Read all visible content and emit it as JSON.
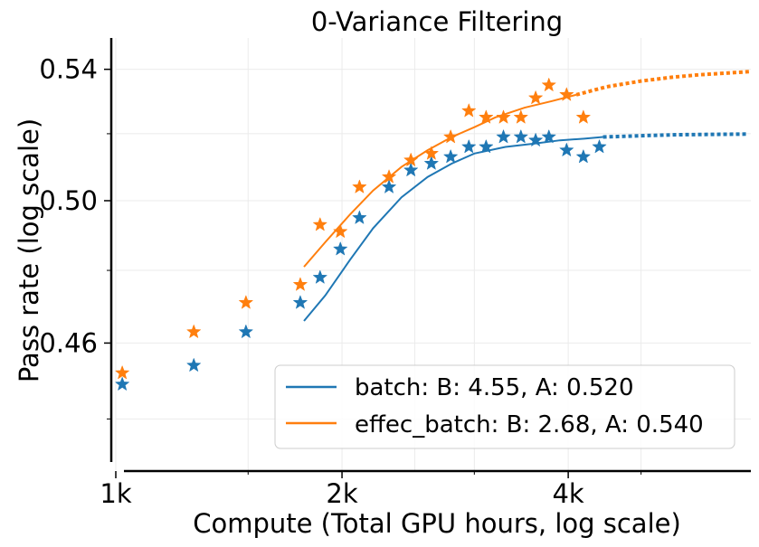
{
  "chart_data": {
    "type": "scatter",
    "title": "0-Variance Filtering",
    "xlabel": "Compute (Total GPU hours, log scale)",
    "ylabel": "Pass rate (log scale)",
    "x_scale": "log",
    "y_scale": "log",
    "xlim": [
      1000,
      7000
    ],
    "ylim": [
      0.427,
      0.55
    ],
    "x_ticks": [
      1000,
      2000,
      4000
    ],
    "x_tick_labels": [
      "1k",
      "2k",
      "4k"
    ],
    "y_ticks": [
      0.46,
      0.5,
      0.54
    ],
    "y_tick_labels": [
      "0.46",
      "0.50",
      "0.54"
    ],
    "grid": true,
    "legend_position": "lower-right",
    "series": [
      {
        "name": "batch: B: 4.55, A: 0.520",
        "color": "#1f77b4",
        "points": [
          {
            "x": 1020,
            "y": 0.449
          },
          {
            "x": 1270,
            "y": 0.454
          },
          {
            "x": 1490,
            "y": 0.463
          },
          {
            "x": 1760,
            "y": 0.471
          },
          {
            "x": 1870,
            "y": 0.478
          },
          {
            "x": 1990,
            "y": 0.486
          },
          {
            "x": 2110,
            "y": 0.495
          },
          {
            "x": 2310,
            "y": 0.504
          },
          {
            "x": 2470,
            "y": 0.509
          },
          {
            "x": 2630,
            "y": 0.511
          },
          {
            "x": 2790,
            "y": 0.513
          },
          {
            "x": 2950,
            "y": 0.516
          },
          {
            "x": 3110,
            "y": 0.516
          },
          {
            "x": 3280,
            "y": 0.519
          },
          {
            "x": 3460,
            "y": 0.519
          },
          {
            "x": 3620,
            "y": 0.518
          },
          {
            "x": 3770,
            "y": 0.519
          },
          {
            "x": 3980,
            "y": 0.515
          },
          {
            "x": 4190,
            "y": 0.513
          },
          {
            "x": 4400,
            "y": 0.516
          }
        ],
        "fit": {
          "x": [
            1780,
            1900,
            2050,
            2200,
            2400,
            2600,
            2800,
            3000,
            3300,
            3600,
            3900,
            4200,
            4450
          ],
          "y": [
            0.466,
            0.473,
            0.483,
            0.492,
            0.501,
            0.507,
            0.511,
            0.514,
            0.516,
            0.517,
            0.518,
            0.5185,
            0.519
          ]
        },
        "extrapolation": {
          "x": [
            4450,
            5000,
            5600,
            6200,
            6900
          ],
          "y": [
            0.519,
            0.5194,
            0.5197,
            0.5198,
            0.5199
          ]
        }
      },
      {
        "name": "effec_batch: B: 2.68, A: 0.540",
        "color": "#ff7f0e",
        "points": [
          {
            "x": 1020,
            "y": 0.452
          },
          {
            "x": 1270,
            "y": 0.463
          },
          {
            "x": 1490,
            "y": 0.471
          },
          {
            "x": 1760,
            "y": 0.476
          },
          {
            "x": 1870,
            "y": 0.493
          },
          {
            "x": 1990,
            "y": 0.491
          },
          {
            "x": 2110,
            "y": 0.504
          },
          {
            "x": 2310,
            "y": 0.507
          },
          {
            "x": 2470,
            "y": 0.512
          },
          {
            "x": 2630,
            "y": 0.514
          },
          {
            "x": 2790,
            "y": 0.519
          },
          {
            "x": 2950,
            "y": 0.527
          },
          {
            "x": 3110,
            "y": 0.525
          },
          {
            "x": 3280,
            "y": 0.525
          },
          {
            "x": 3460,
            "y": 0.525
          },
          {
            "x": 3620,
            "y": 0.531
          },
          {
            "x": 3770,
            "y": 0.535
          },
          {
            "x": 3980,
            "y": 0.532
          },
          {
            "x": 4190,
            "y": 0.525
          }
        ],
        "fit": {
          "x": [
            1780,
            1900,
            2050,
            2200,
            2400,
            2600,
            2800,
            3000,
            3200,
            3500,
            3800,
            4100
          ],
          "y": [
            0.481,
            0.488,
            0.496,
            0.503,
            0.51,
            0.515,
            0.519,
            0.522,
            0.525,
            0.528,
            0.53,
            0.532
          ]
        },
        "extrapolation": {
          "x": [
            4100,
            4500,
            5000,
            5500,
            6000,
            6500,
            7000
          ],
          "y": [
            0.532,
            0.5345,
            0.5363,
            0.5375,
            0.5383,
            0.5388,
            0.5393
          ]
        }
      }
    ]
  }
}
